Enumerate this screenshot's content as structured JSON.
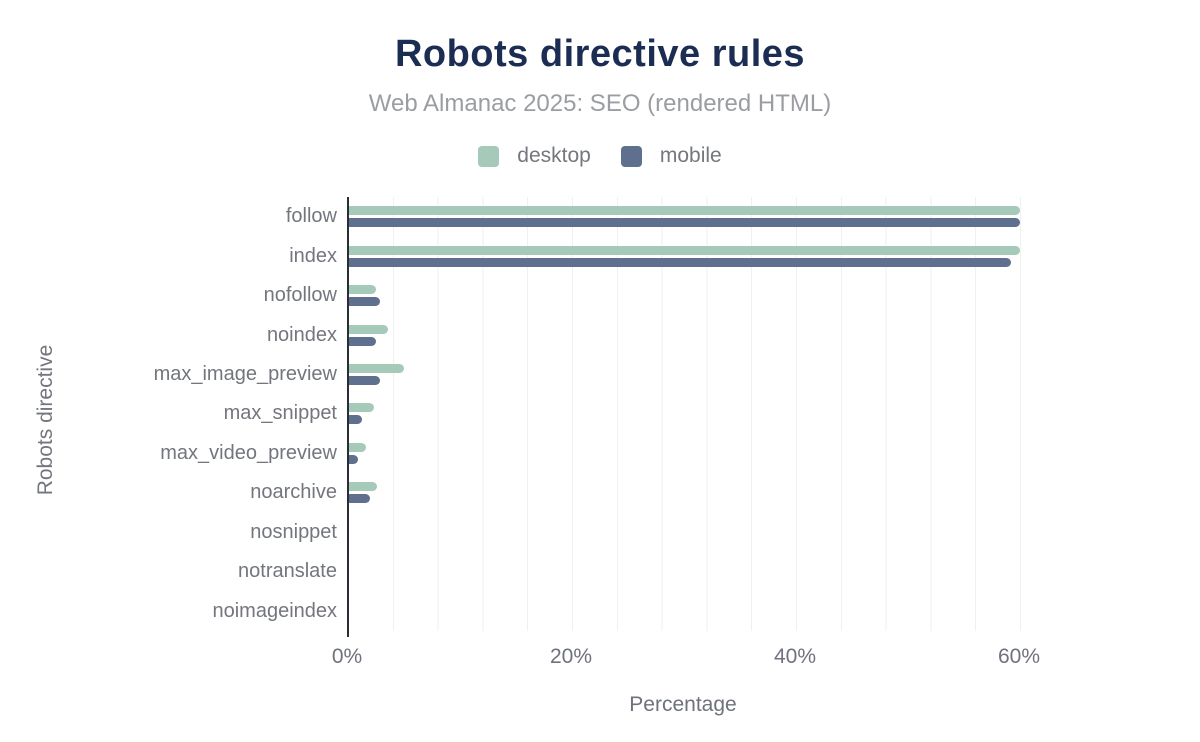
{
  "chart_data": {
    "type": "bar",
    "orientation": "horizontal",
    "title": "Robots directive rules",
    "subtitle": "Web Almanac 2025: SEO (rendered HTML)",
    "xlabel": "Percentage",
    "ylabel": "Robots directive",
    "categories": [
      "follow",
      "index",
      "nofollow",
      "noindex",
      "max_image_preview",
      "max_snippet",
      "max_video_preview",
      "noarchive",
      "nosnippet",
      "notranslate",
      "noimageindex"
    ],
    "series": [
      {
        "name": "desktop",
        "color": "#a6cab9",
        "values": [
          59.9,
          59.9,
          2.4,
          3.5,
          4.9,
          2.2,
          1.5,
          2.5,
          0,
          0,
          0
        ]
      },
      {
        "name": "mobile",
        "color": "#5e708d",
        "values": [
          59.9,
          59.1,
          2.8,
          2.4,
          2.8,
          1.2,
          0.8,
          1.9,
          0,
          0,
          0
        ]
      }
    ],
    "xlim": [
      0,
      60
    ],
    "x_ticks": [
      {
        "label": "0%",
        "value": 0
      },
      {
        "label": "20%",
        "value": 20
      },
      {
        "label": "40%",
        "value": 40
      },
      {
        "label": "60%",
        "value": 60
      }
    ],
    "gridline_step_pct": 4,
    "grid": true,
    "legend_position": "top",
    "colors": {
      "title": "#1b2d53",
      "subtitle": "#9a9da2",
      "axis_text": "#73767c",
      "axis_line": "#2a2d33",
      "gridline": "#eef0f2",
      "background": "#ffffff"
    }
  }
}
